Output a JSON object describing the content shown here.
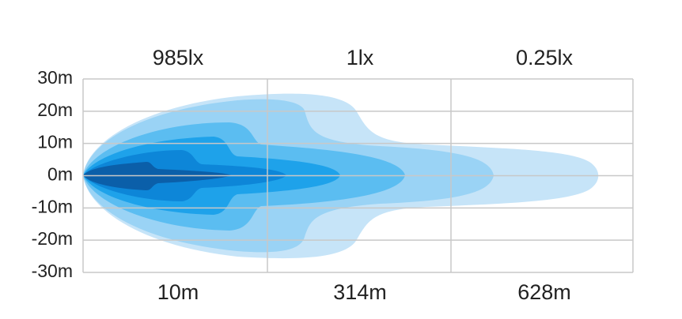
{
  "chart_data": {
    "type": "beam-pattern",
    "top_labels": [
      "985lx",
      "1lx",
      "0.25lx"
    ],
    "categories": [
      "10m",
      "314m",
      "628m"
    ],
    "ylim": [
      -30,
      30
    ],
    "yticks": [
      {
        "value": 30,
        "label": "30m"
      },
      {
        "value": 20,
        "label": "20m"
      },
      {
        "value": 10,
        "label": "10m"
      },
      {
        "value": 0,
        "label": "0m"
      },
      {
        "value": -10,
        "label": "-10m"
      },
      {
        "value": -20,
        "label": "-20m"
      },
      {
        "value": -30,
        "label": "-30m"
      }
    ],
    "grid": true
  }
}
